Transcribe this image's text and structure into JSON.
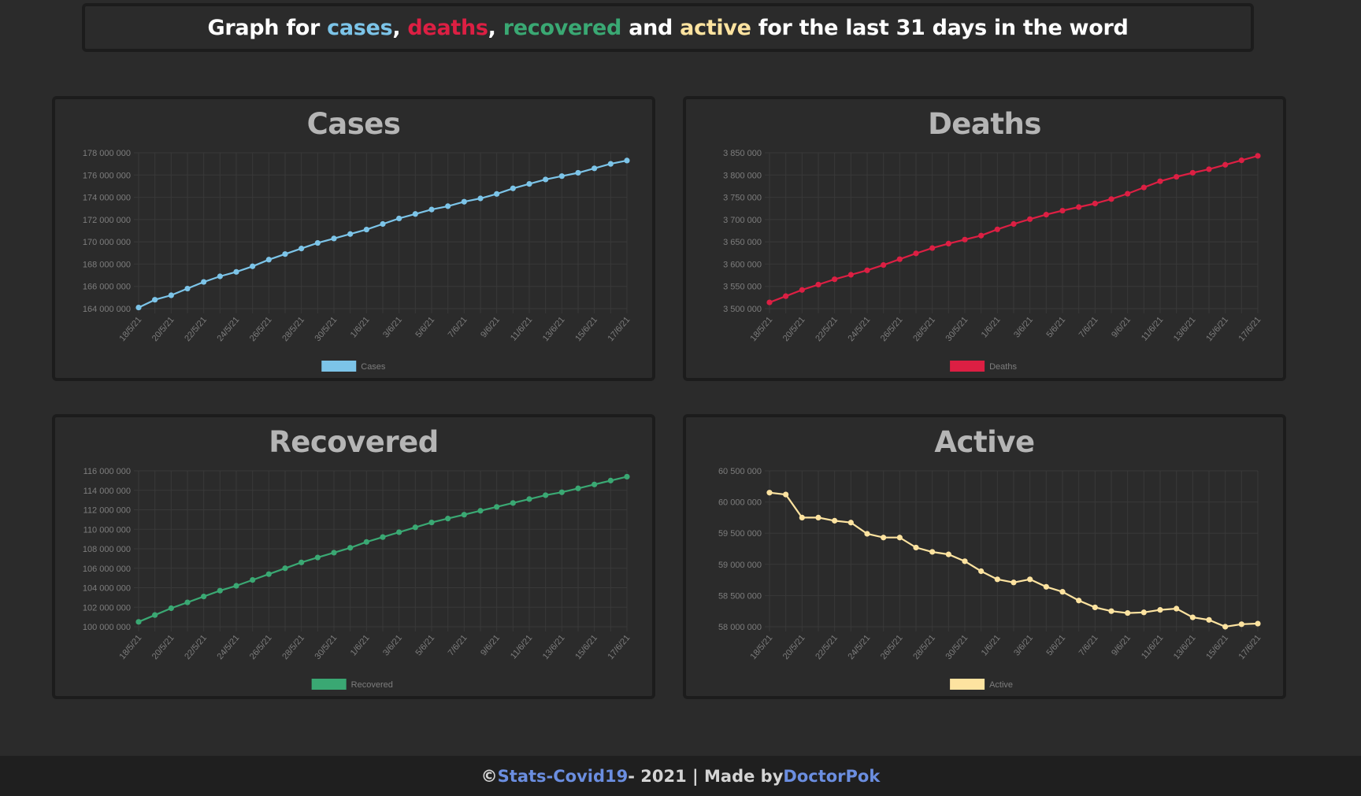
{
  "header": {
    "prefix": "Graph for ",
    "cases_word": "cases",
    "sep1": ", ",
    "deaths_word": "deaths",
    "sep2": ", ",
    "recovered_word": "recovered",
    "and_word": " and ",
    "active_word": "active",
    "suffix": " for the last 31 days in the word"
  },
  "colors": {
    "cases": "#7cc4e8",
    "deaths": "#dc1f43",
    "recovered": "#3aa873",
    "active": "#fde3a0"
  },
  "footer": {
    "copyright": "© ",
    "site_link": "Stats-Covid19",
    "middle": " - 2021 | Made by ",
    "author_link": "DoctorPok"
  },
  "chart_data": [
    {
      "id": "cases",
      "type": "line",
      "title": "Cases",
      "legend": "Cases",
      "color": "#7cc4e8",
      "x_tick_labels": [
        "18/5/21",
        "20/5/21",
        "22/5/21",
        "24/5/21",
        "26/5/21",
        "28/5/21",
        "30/5/21",
        "1/6/21",
        "3/6/21",
        "5/6/21",
        "7/6/21",
        "9/6/21",
        "11/6/21",
        "13/6/21",
        "15/6/21",
        "17/6/21"
      ],
      "y_tick_labels": [
        "178 000 000",
        "176 000 000",
        "174 000 000",
        "172 000 000",
        "170 000 000",
        "168 000 000",
        "166 000 000",
        "164 000 000"
      ],
      "ylim": [
        164000000,
        178000000
      ],
      "values": [
        164100000,
        164800000,
        165200000,
        165800000,
        166400000,
        166900000,
        167300000,
        167800000,
        168400000,
        168900000,
        169400000,
        169900000,
        170300000,
        170700000,
        171100000,
        171600000,
        172100000,
        172500000,
        172900000,
        173200000,
        173600000,
        173900000,
        174300000,
        174800000,
        175200000,
        175600000,
        175900000,
        176200000,
        176600000,
        177000000,
        177300000
      ]
    },
    {
      "id": "deaths",
      "type": "line",
      "title": "Deaths",
      "legend": "Deaths",
      "color": "#dc1f43",
      "x_tick_labels": [
        "18/5/21",
        "20/5/21",
        "22/5/21",
        "24/5/21",
        "26/5/21",
        "28/5/21",
        "30/5/21",
        "1/6/21",
        "3/6/21",
        "5/6/21",
        "7/6/21",
        "9/6/21",
        "11/6/21",
        "13/6/21",
        "15/6/21",
        "17/6/21"
      ],
      "y_tick_labels": [
        "3 850 000",
        "3 800 000",
        "3 750 000",
        "3 700 000",
        "3 650 000",
        "3 600 000",
        "3 550 000",
        "3 500 000"
      ],
      "ylim": [
        3500000,
        3850000
      ],
      "values": [
        3514000,
        3528000,
        3542000,
        3554000,
        3566000,
        3576000,
        3586000,
        3598000,
        3611000,
        3624000,
        3636000,
        3646000,
        3655000,
        3664000,
        3678000,
        3690000,
        3701000,
        3711000,
        3720000,
        3728000,
        3736000,
        3746000,
        3758000,
        3772000,
        3786000,
        3796000,
        3805000,
        3813000,
        3823000,
        3833000,
        3843000
      ]
    },
    {
      "id": "recovered",
      "type": "line",
      "title": "Recovered",
      "legend": "Recovered",
      "color": "#3aa873",
      "x_tick_labels": [
        "18/5/21",
        "20/5/21",
        "22/5/21",
        "24/5/21",
        "26/5/21",
        "28/5/21",
        "30/5/21",
        "1/6/21",
        "3/6/21",
        "5/6/21",
        "7/6/21",
        "9/6/21",
        "11/6/21",
        "13/6/21",
        "15/6/21",
        "17/6/21"
      ],
      "y_tick_labels": [
        "116 000 000",
        "114 000 000",
        "112 000 000",
        "110 000 000",
        "108 000 000",
        "106 000 000",
        "104 000 000",
        "102 000 000",
        "100 000 000"
      ],
      "ylim": [
        100000000,
        116000000
      ],
      "values": [
        100500000,
        101200000,
        101900000,
        102500000,
        103100000,
        103700000,
        104200000,
        104800000,
        105400000,
        106000000,
        106600000,
        107100000,
        107600000,
        108100000,
        108700000,
        109200000,
        109700000,
        110200000,
        110700000,
        111100000,
        111500000,
        111900000,
        112300000,
        112700000,
        113100000,
        113500000,
        113800000,
        114200000,
        114600000,
        115000000,
        115400000
      ]
    },
    {
      "id": "active",
      "type": "line",
      "title": "Active",
      "legend": "Active",
      "color": "#fde3a0",
      "x_tick_labels": [
        "18/5/21",
        "20/5/21",
        "22/5/21",
        "24/5/21",
        "26/5/21",
        "28/5/21",
        "30/5/21",
        "1/6/21",
        "3/6/21",
        "5/6/21",
        "7/6/21",
        "9/6/21",
        "11/6/21",
        "13/6/21",
        "15/6/21",
        "17/6/21"
      ],
      "y_tick_labels": [
        "60 500 000",
        "60 000 000",
        "59 500 000",
        "59 000 000",
        "58 500 000",
        "58 000 000"
      ],
      "ylim": [
        58000000,
        60500000
      ],
      "values": [
        60150000,
        60120000,
        59750000,
        59750000,
        59700000,
        59670000,
        59490000,
        59430000,
        59430000,
        59270000,
        59200000,
        59160000,
        59050000,
        58890000,
        58760000,
        58710000,
        58760000,
        58640000,
        58560000,
        58420000,
        58310000,
        58250000,
        58220000,
        58230000,
        58270000,
        58290000,
        58150000,
        58110000,
        58000000,
        58040000,
        58050000
      ]
    }
  ]
}
